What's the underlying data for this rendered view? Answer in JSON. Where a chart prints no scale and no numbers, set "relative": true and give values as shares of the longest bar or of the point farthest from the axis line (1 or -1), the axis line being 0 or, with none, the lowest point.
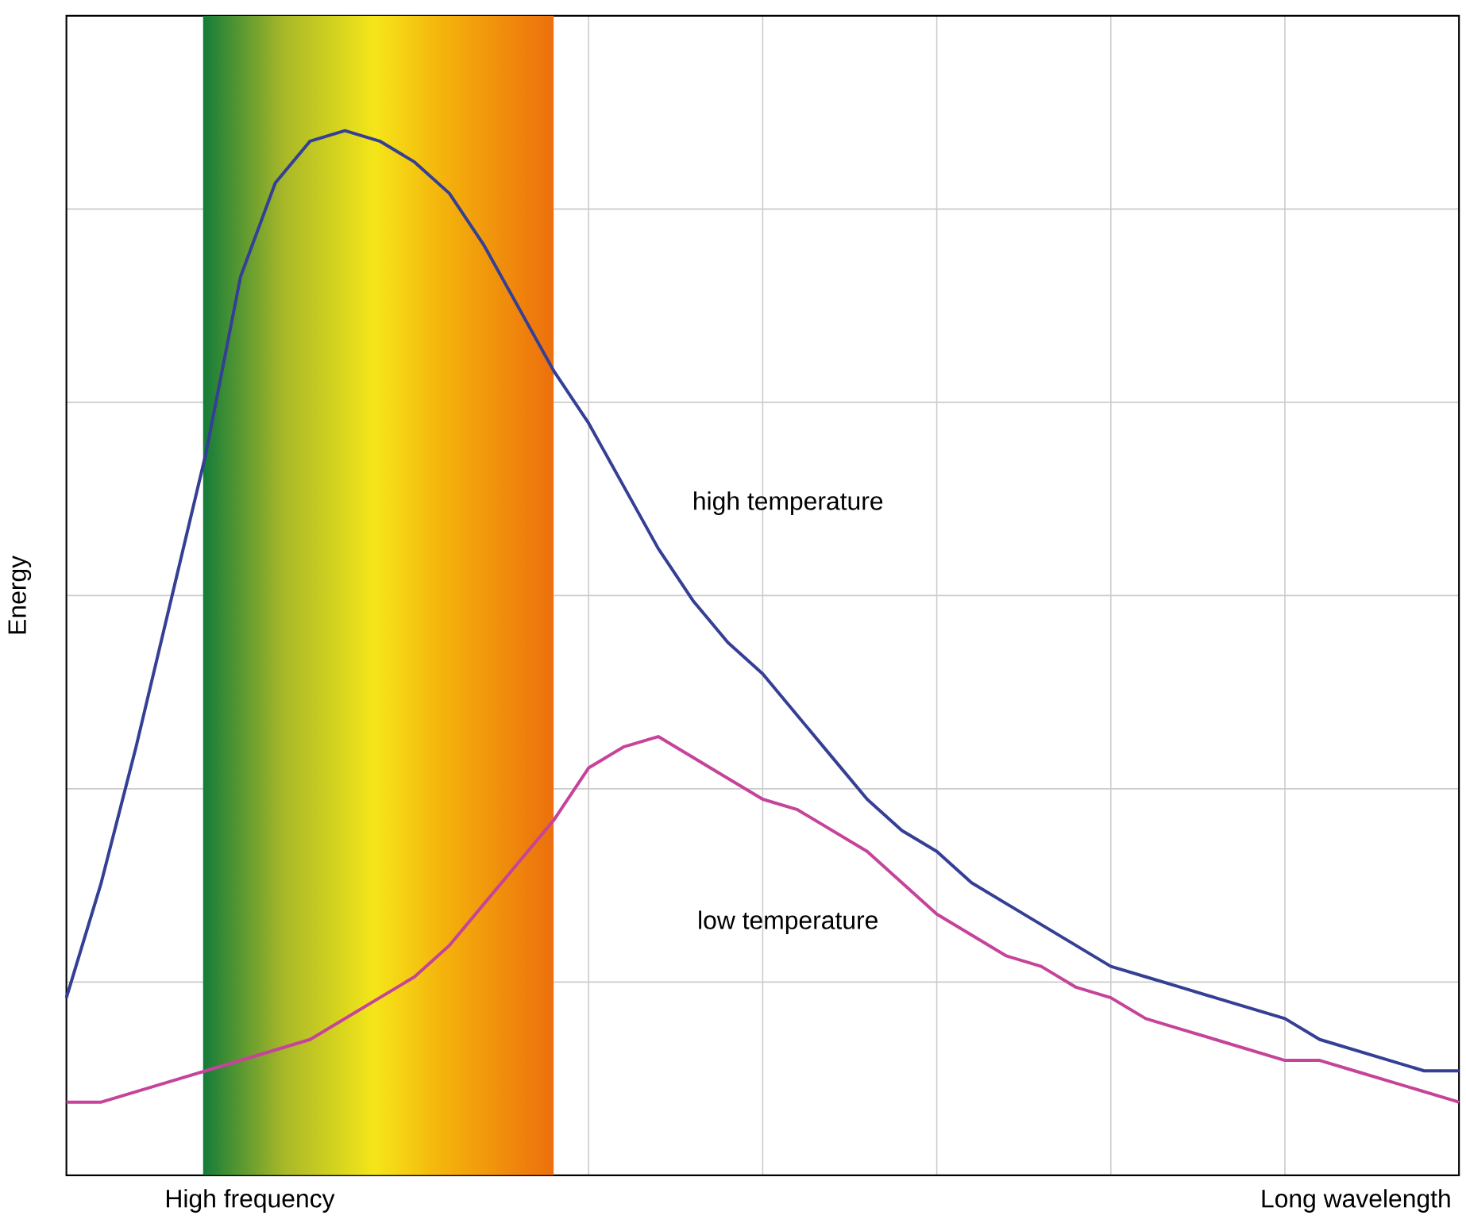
{
  "chart_data": {
    "type": "line",
    "relative": true,
    "ylabel": "Energy",
    "annotations": [
      "High frequency",
      "Long wavelength"
    ],
    "categories": [
      null,
      null,
      null,
      null,
      null,
      null,
      null,
      null,
      null,
      null,
      null,
      null,
      null,
      null,
      null,
      null,
      null,
      null,
      null,
      null,
      null,
      null,
      null,
      null,
      null,
      null,
      null,
      null,
      null,
      null,
      null,
      null,
      null,
      null,
      null,
      null,
      null,
      null,
      null,
      null,
      null
    ],
    "series": [
      {
        "name": "high temperature",
        "color": "#343f95",
        "values": [
          0.17,
          0.28,
          0.41,
          0.55,
          0.69,
          0.86,
          0.95,
          0.99,
          1.0,
          0.99,
          0.97,
          0.94,
          0.89,
          0.83,
          0.77,
          0.72,
          0.66,
          0.6,
          0.55,
          0.51,
          0.48,
          0.44,
          0.4,
          0.36,
          0.33,
          0.31,
          0.28,
          0.26,
          0.24,
          0.22,
          0.2,
          0.19,
          0.18,
          0.17,
          0.16,
          0.15,
          0.13,
          0.12,
          0.11,
          0.1,
          0.1
        ]
      },
      {
        "name": "low temperature",
        "color": "#c5449a",
        "values": [
          0.07,
          0.07,
          0.08,
          0.09,
          0.1,
          0.11,
          0.12,
          0.13,
          0.15,
          0.17,
          0.19,
          0.22,
          0.26,
          0.3,
          0.34,
          0.39,
          0.41,
          0.42,
          0.4,
          0.38,
          0.36,
          0.35,
          0.33,
          0.31,
          0.28,
          0.25,
          0.23,
          0.21,
          0.2,
          0.18,
          0.17,
          0.15,
          0.14,
          0.13,
          0.12,
          0.11,
          0.11,
          0.1,
          0.09,
          0.08,
          0.07
        ]
      }
    ],
    "grid": true,
    "marker": "none",
    "line_style": "solid"
  }
}
